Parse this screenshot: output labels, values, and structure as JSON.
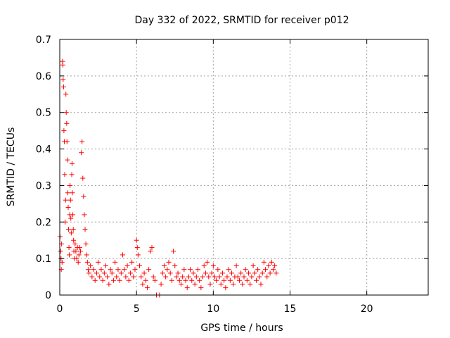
{
  "chart_data": {
    "type": "scatter",
    "title": "Day 332 of 2022, SRMTID for receiver p012",
    "xlabel": "GPS time / hours",
    "ylabel": "SRMTID / TECUs",
    "xlim": [
      0,
      24
    ],
    "ylim": [
      0,
      0.7
    ],
    "xticks": [
      0,
      5,
      10,
      15,
      20
    ],
    "yticks": [
      0,
      0.1,
      0.2,
      0.3,
      0.4,
      0.5,
      0.6,
      0.7
    ],
    "grid": true,
    "marker": "+",
    "color": "#ff0000",
    "series": [
      {
        "name": "SRMTID",
        "points": [
          [
            0.02,
            0.16
          ],
          [
            0.05,
            0.12
          ],
          [
            0.08,
            0.1
          ],
          [
            0.1,
            0.07
          ],
          [
            0.12,
            0.14
          ],
          [
            0.15,
            0.09
          ],
          [
            0.18,
            0.64
          ],
          [
            0.2,
            0.63
          ],
          [
            0.22,
            0.59
          ],
          [
            0.25,
            0.57
          ],
          [
            0.27,
            0.45
          ],
          [
            0.3,
            0.42
          ],
          [
            0.32,
            0.33
          ],
          [
            0.35,
            0.2
          ],
          [
            0.38,
            0.26
          ],
          [
            0.4,
            0.55
          ],
          [
            0.42,
            0.5
          ],
          [
            0.45,
            0.47
          ],
          [
            0.47,
            0.42
          ],
          [
            0.5,
            0.37
          ],
          [
            0.52,
            0.28
          ],
          [
            0.55,
            0.24
          ],
          [
            0.57,
            0.18
          ],
          [
            0.6,
            0.13
          ],
          [
            0.62,
            0.11
          ],
          [
            0.65,
            0.22
          ],
          [
            0.67,
            0.3
          ],
          [
            0.7,
            0.26
          ],
          [
            0.72,
            0.21
          ],
          [
            0.75,
            0.17
          ],
          [
            0.78,
            0.33
          ],
          [
            0.8,
            0.36
          ],
          [
            0.82,
            0.28
          ],
          [
            0.85,
            0.22
          ],
          [
            0.88,
            0.18
          ],
          [
            0.9,
            0.15
          ],
          [
            0.92,
            0.12
          ],
          [
            0.95,
            0.1
          ],
          [
            1.0,
            0.14
          ],
          [
            1.05,
            0.12
          ],
          [
            1.1,
            0.1
          ],
          [
            1.15,
            0.13
          ],
          [
            1.2,
            0.09
          ],
          [
            1.25,
            0.11
          ],
          [
            1.3,
            0.13
          ],
          [
            1.35,
            0.12
          ],
          [
            1.4,
            0.39
          ],
          [
            1.45,
            0.42
          ],
          [
            1.5,
            0.32
          ],
          [
            1.55,
            0.27
          ],
          [
            1.6,
            0.22
          ],
          [
            1.65,
            0.18
          ],
          [
            1.7,
            0.14
          ],
          [
            1.75,
            0.11
          ],
          [
            1.8,
            0.09
          ],
          [
            1.85,
            0.07
          ],
          [
            1.9,
            0.06
          ],
          [
            2.0,
            0.08
          ],
          [
            2.1,
            0.05
          ],
          [
            2.2,
            0.07
          ],
          [
            2.3,
            0.04
          ],
          [
            2.4,
            0.06
          ],
          [
            2.5,
            0.09
          ],
          [
            2.6,
            0.05
          ],
          [
            2.7,
            0.07
          ],
          [
            2.8,
            0.04
          ],
          [
            2.9,
            0.06
          ],
          [
            3.0,
            0.08
          ],
          [
            3.1,
            0.05
          ],
          [
            3.2,
            0.03
          ],
          [
            3.3,
            0.07
          ],
          [
            3.4,
            0.06
          ],
          [
            3.5,
            0.04
          ],
          [
            3.6,
            0.09
          ],
          [
            3.7,
            0.05
          ],
          [
            3.8,
            0.07
          ],
          [
            3.9,
            0.04
          ],
          [
            4.0,
            0.06
          ],
          [
            4.1,
            0.11
          ],
          [
            4.2,
            0.07
          ],
          [
            4.3,
            0.05
          ],
          [
            4.4,
            0.08
          ],
          [
            4.5,
            0.04
          ],
          [
            4.6,
            0.06
          ],
          [
            4.7,
            0.09
          ],
          [
            4.8,
            0.05
          ],
          [
            4.9,
            0.07
          ],
          [
            5.0,
            0.15
          ],
          [
            5.05,
            0.13
          ],
          [
            5.1,
            0.11
          ],
          [
            5.2,
            0.08
          ],
          [
            5.3,
            0.05
          ],
          [
            5.4,
            0.03
          ],
          [
            5.5,
            0.06
          ],
          [
            5.6,
            0.04
          ],
          [
            5.7,
            0.02
          ],
          [
            5.8,
            0.07
          ],
          [
            5.9,
            0.12
          ],
          [
            6.0,
            0.13
          ],
          [
            6.1,
            0.05
          ],
          [
            6.2,
            0.04
          ],
          [
            6.3,
            0.0
          ],
          [
            6.5,
            0.0
          ],
          [
            6.6,
            0.03
          ],
          [
            6.7,
            0.06
          ],
          [
            6.8,
            0.08
          ],
          [
            6.9,
            0.05
          ],
          [
            7.0,
            0.07
          ],
          [
            7.1,
            0.09
          ],
          [
            7.2,
            0.06
          ],
          [
            7.3,
            0.04
          ],
          [
            7.4,
            0.12
          ],
          [
            7.5,
            0.08
          ],
          [
            7.6,
            0.05
          ],
          [
            7.7,
            0.06
          ],
          [
            7.8,
            0.04
          ],
          [
            7.9,
            0.03
          ],
          [
            8.0,
            0.05
          ],
          [
            8.1,
            0.07
          ],
          [
            8.2,
            0.04
          ],
          [
            8.3,
            0.02
          ],
          [
            8.4,
            0.05
          ],
          [
            8.5,
            0.07
          ],
          [
            8.6,
            0.04
          ],
          [
            8.7,
            0.06
          ],
          [
            8.8,
            0.03
          ],
          [
            8.9,
            0.05
          ],
          [
            9.0,
            0.07
          ],
          [
            9.1,
            0.04
          ],
          [
            9.2,
            0.02
          ],
          [
            9.3,
            0.05
          ],
          [
            9.4,
            0.08
          ],
          [
            9.5,
            0.06
          ],
          [
            9.6,
            0.09
          ],
          [
            9.7,
            0.05
          ],
          [
            9.8,
            0.03
          ],
          [
            9.9,
            0.06
          ],
          [
            10.0,
            0.08
          ],
          [
            10.1,
            0.05
          ],
          [
            10.2,
            0.04
          ],
          [
            10.3,
            0.07
          ],
          [
            10.4,
            0.05
          ],
          [
            10.5,
            0.03
          ],
          [
            10.6,
            0.06
          ],
          [
            10.7,
            0.04
          ],
          [
            10.8,
            0.02
          ],
          [
            10.9,
            0.05
          ],
          [
            11.0,
            0.07
          ],
          [
            11.1,
            0.04
          ],
          [
            11.2,
            0.06
          ],
          [
            11.3,
            0.03
          ],
          [
            11.4,
            0.05
          ],
          [
            11.5,
            0.08
          ],
          [
            11.6,
            0.05
          ],
          [
            11.7,
            0.04
          ],
          [
            11.8,
            0.06
          ],
          [
            11.9,
            0.03
          ],
          [
            12.0,
            0.05
          ],
          [
            12.1,
            0.07
          ],
          [
            12.2,
            0.04
          ],
          [
            12.3,
            0.06
          ],
          [
            12.4,
            0.03
          ],
          [
            12.5,
            0.05
          ],
          [
            12.6,
            0.08
          ],
          [
            12.7,
            0.06
          ],
          [
            12.8,
            0.04
          ],
          [
            12.9,
            0.07
          ],
          [
            13.0,
            0.05
          ],
          [
            13.1,
            0.03
          ],
          [
            13.2,
            0.06
          ],
          [
            13.3,
            0.09
          ],
          [
            13.4,
            0.07
          ],
          [
            13.5,
            0.05
          ],
          [
            13.6,
            0.08
          ],
          [
            13.7,
            0.06
          ],
          [
            13.8,
            0.09
          ],
          [
            13.9,
            0.07
          ],
          [
            14.0,
            0.08
          ],
          [
            14.1,
            0.06
          ]
        ]
      }
    ]
  }
}
